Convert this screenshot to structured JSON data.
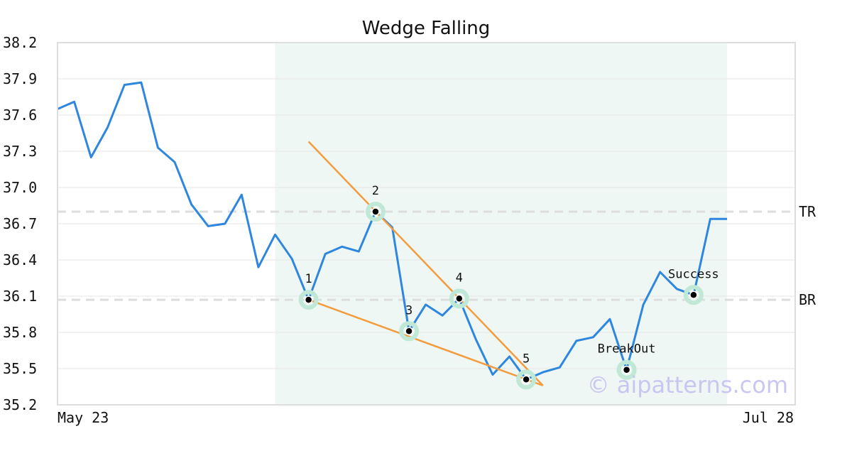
{
  "colors": {
    "line": "#2e86de",
    "trendline": "#f39c3d",
    "highlight_band": "#eef7f3",
    "marker_halo": "#bfe9d6",
    "marker_dot": "#000000",
    "reference_line": "#dddddd",
    "grid": "#e6e6e6",
    "frame": "#dddddd",
    "watermark": "#c9c6f2"
  },
  "watermark": "© aipatterns.com",
  "chart_data": {
    "type": "line",
    "title": "Wedge Falling",
    "xlabel": "",
    "ylabel": "",
    "ylim": [
      35.2,
      38.2
    ],
    "y_ticks": [
      "38.2",
      "37.9",
      "37.6",
      "37.3",
      "37.0",
      "36.7",
      "36.4",
      "36.1",
      "35.8",
      "35.5",
      "35.2"
    ],
    "x_ticks": [
      "May 23",
      "Jul 28"
    ],
    "grid": true,
    "series": [
      {
        "values": [
          37.65,
          37.71,
          37.25,
          37.5,
          37.85,
          37.87,
          37.33,
          37.21,
          36.86,
          36.68,
          36.7,
          36.94,
          36.34,
          36.61,
          36.41,
          36.07,
          36.45,
          36.51,
          36.47,
          36.8,
          36.67,
          35.81,
          36.03,
          35.94,
          36.08,
          35.74,
          35.45,
          35.6,
          35.41,
          35.47,
          35.51,
          35.73,
          35.76,
          35.91,
          35.49,
          36.03,
          36.3,
          36.16,
          36.11,
          36.74,
          36.74
        ]
      }
    ],
    "highlight_range": {
      "start_index": 13,
      "end_index": 40
    },
    "reference_lines": [
      {
        "label": "TR",
        "value": 36.8
      },
      {
        "label": "BR",
        "value": 36.07
      }
    ],
    "trendlines": [
      {
        "from": {
          "index": 15,
          "value": 37.38
        },
        "to": {
          "index": 29,
          "value": 35.36
        }
      },
      {
        "from": {
          "index": 15,
          "value": 36.07
        },
        "to": {
          "index": 29,
          "value": 35.36
        }
      }
    ],
    "annotations": [
      {
        "label": "1",
        "index": 15,
        "value": 36.07
      },
      {
        "label": "2",
        "index": 19,
        "value": 36.8
      },
      {
        "label": "3",
        "index": 21,
        "value": 35.81
      },
      {
        "label": "4",
        "index": 24,
        "value": 36.08
      },
      {
        "label": "5",
        "index": 28,
        "value": 35.41
      },
      {
        "label": "BreakOut",
        "index": 34,
        "value": 35.49
      },
      {
        "label": "Success",
        "index": 38,
        "value": 36.11
      }
    ]
  }
}
